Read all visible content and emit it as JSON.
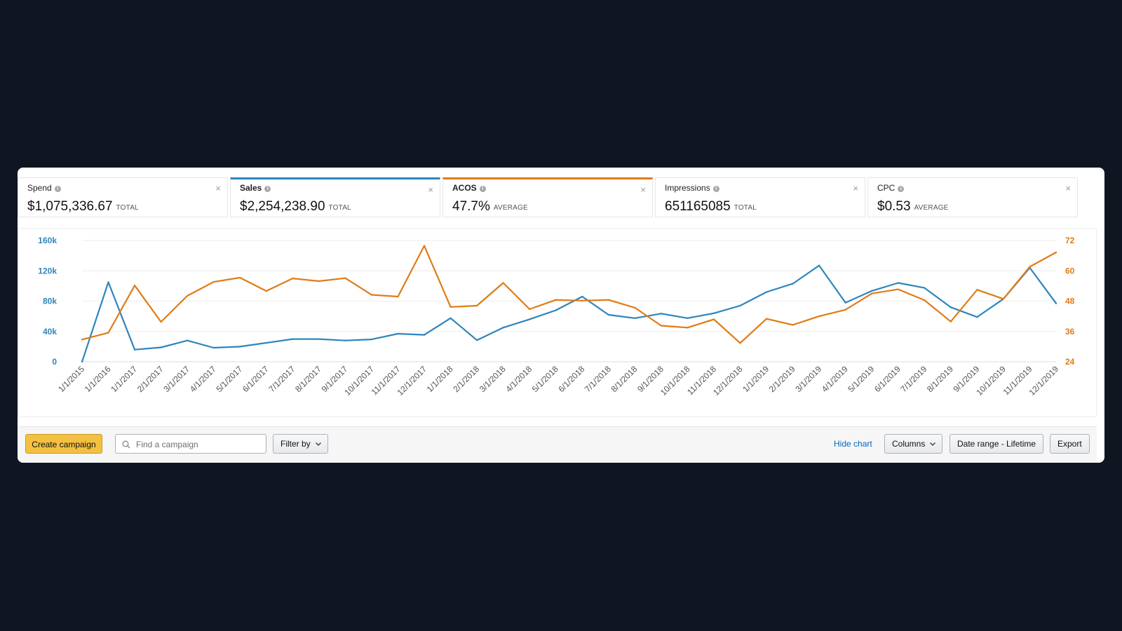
{
  "metrics": [
    {
      "label": "Spend",
      "value": "$1,075,336.67",
      "unit": "TOTAL",
      "icon": "info-icon",
      "close": "×"
    },
    {
      "label": "Sales",
      "value": "$2,254,238.90",
      "unit": "TOTAL",
      "icon": "info-icon",
      "close": "×"
    },
    {
      "label": "ACOS",
      "value": "47.7%",
      "unit": "AVERAGE",
      "icon": "info-icon",
      "close": "×"
    },
    {
      "label": "Impressions",
      "value": "651165085",
      "unit": "TOTAL",
      "icon": "info-icon",
      "close": "×"
    },
    {
      "label": "CPC",
      "value": "$0.53",
      "unit": "AVERAGE",
      "icon": "info-icon",
      "close": "×"
    }
  ],
  "colors": {
    "sales": "#2e85bd",
    "acos": "#e07b17",
    "grid": "#eeeeee",
    "axis": "#dddddd"
  },
  "chart_data": {
    "type": "line",
    "categories": [
      "1/1/2015",
      "1/1/2016",
      "1/1/2017",
      "2/1/2017",
      "3/1/2017",
      "4/1/2017",
      "5/1/2017",
      "6/1/2017",
      "7/1/2017",
      "8/1/2017",
      "9/1/2017",
      "10/1/2017",
      "11/1/2017",
      "12/1/2017",
      "1/1/2018",
      "2/1/2018",
      "3/1/2018",
      "4/1/2018",
      "5/1/2018",
      "6/1/2018",
      "7/1/2018",
      "8/1/2018",
      "9/1/2018",
      "10/1/2018",
      "11/1/2018",
      "12/1/2018",
      "1/1/2019",
      "2/1/2019",
      "3/1/2019",
      "4/1/2019",
      "5/1/2019",
      "6/1/2019",
      "7/1/2019",
      "8/1/2019",
      "9/1/2019",
      "10/1/2019",
      "11/1/2019",
      "12/1/2019"
    ],
    "series": [
      {
        "name": "Sales",
        "axis": "left",
        "color": "#2e85bd",
        "values": [
          0,
          105000,
          16000,
          19000,
          28000,
          18500,
          20000,
          25000,
          30000,
          30000,
          28000,
          29500,
          37000,
          35500,
          57500,
          28500,
          45000,
          56000,
          68000,
          86000,
          62000,
          57500,
          63500,
          57500,
          64000,
          74000,
          92000,
          103000,
          127000,
          78000,
          93500,
          104000,
          97500,
          72000,
          59000,
          83000,
          124000,
          77000
        ]
      },
      {
        "name": "ACOS",
        "axis": "right",
        "color": "#e07b17",
        "values": [
          32.8,
          35.5,
          54.2,
          39.8,
          50.1,
          55.6,
          57.3,
          52.0,
          57.0,
          55.9,
          57.1,
          50.5,
          49.8,
          69.9,
          45.7,
          46.2,
          55.2,
          44.8,
          48.5,
          48.2,
          48.5,
          45.4,
          38.3,
          37.5,
          40.8,
          31.4,
          41.0,
          38.6,
          42.0,
          44.6,
          51.0,
          52.7,
          48.4,
          39.9,
          52.5,
          48.9,
          61.6,
          67.3
        ]
      }
    ],
    "y_left": {
      "min": 0,
      "max": 160000,
      "ticks": [
        "0",
        "40k",
        "80k",
        "120k",
        "160k"
      ]
    },
    "y_right": {
      "min": 24,
      "max": 72,
      "ticks": [
        "24",
        "36",
        "48",
        "60",
        "72"
      ]
    },
    "grid": true
  },
  "toolbar": {
    "create_label": "Create campaign",
    "search_placeholder": "Find a campaign",
    "filter_label": "Filter by",
    "hide_chart_label": "Hide chart",
    "columns_label": "Columns",
    "date_range_label": "Date range - Lifetime",
    "export_label": "Export"
  }
}
